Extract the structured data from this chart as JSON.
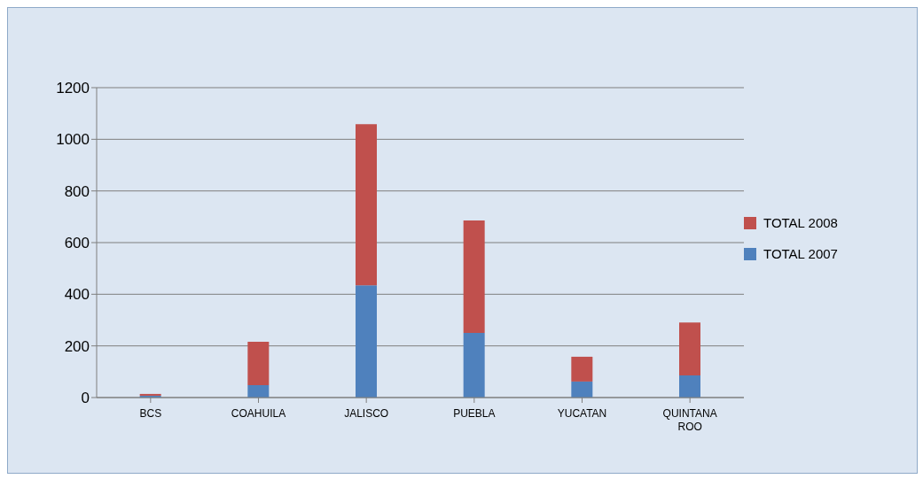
{
  "chart_data": {
    "type": "bar",
    "stacked": true,
    "categories": [
      "BCS",
      "COAHUILA",
      "JALISCO",
      "PUEBLA",
      "YUCATAN",
      "QUINTANA ROO"
    ],
    "series": [
      {
        "name": "TOTAL 2007",
        "color": "#4f81bd",
        "values": [
          7,
          48,
          435,
          250,
          62,
          86
        ]
      },
      {
        "name": "TOTAL 2008",
        "color": "#c0504d",
        "values": [
          7,
          168,
          624,
          436,
          96,
          205
        ]
      }
    ],
    "ylim": [
      0,
      1200
    ],
    "yticks": [
      0,
      200,
      400,
      600,
      800,
      1000,
      1200
    ],
    "grid": "y",
    "legend": "right"
  }
}
